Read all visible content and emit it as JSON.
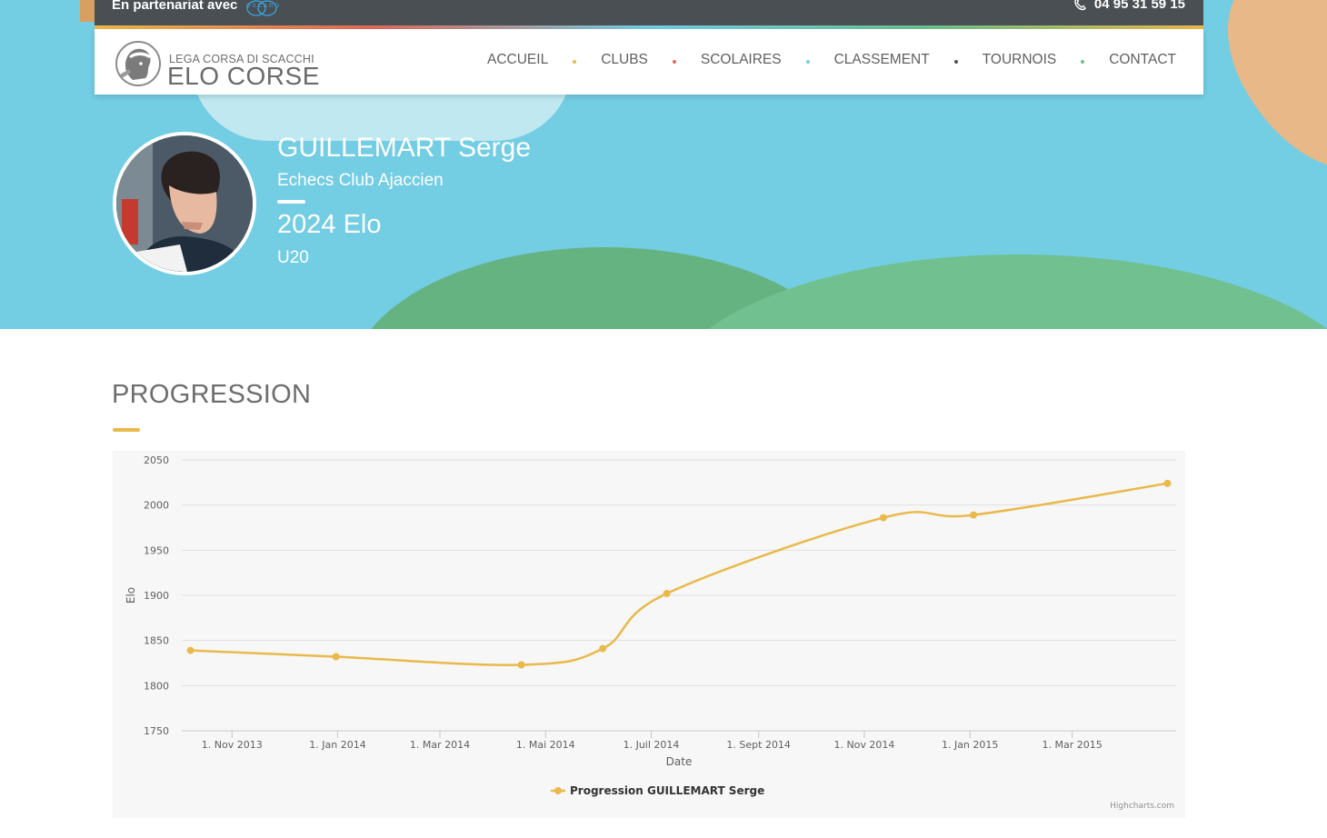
{
  "topbar": {
    "partner_text": "En partenariat avec",
    "partner_logo": "OSCARO",
    "phone": "04 95 31 59 15",
    "phone_icon": "phone-icon"
  },
  "logo": {
    "subtitle": "LEGA CORSA DI SCACCHI",
    "title": "ELO CORSE",
    "emblem_icon": "corsican-head-emblem"
  },
  "nav": {
    "items": [
      {
        "label": "ACCUEIL",
        "dot_color": "#e9b94b"
      },
      {
        "label": "CLUBS",
        "dot_color": "#e06a5a"
      },
      {
        "label": "SCOLAIRES",
        "dot_color": "#72cde3"
      },
      {
        "label": "CLASSEMENT",
        "dot_color": "#555555"
      },
      {
        "label": "TOURNOIS",
        "dot_color": "#6cc08c"
      },
      {
        "label": "CONTACT"
      }
    ]
  },
  "profile": {
    "name": "GUILLEMART Serge",
    "club": "Echecs Club Ajaccien",
    "elo": "2024 Elo",
    "category": "U20",
    "avatar_icon": "player-photo"
  },
  "section": {
    "title": "PROGRESSION"
  },
  "colors": {
    "accent": "#e9b94b",
    "hero_bg": "#73cde3",
    "topbar_bg": "#4a4f53"
  },
  "chart_data": {
    "type": "line",
    "title": "",
    "xlabel": "Date",
    "ylabel": "Elo",
    "ylim": [
      1750,
      2050
    ],
    "yticks": [
      1750,
      1800,
      1850,
      1900,
      1950,
      2000,
      2050
    ],
    "x_tick_labels": [
      "1. Nov 2013",
      "1. Jan 2014",
      "1. Mar 2014",
      "1. Mai 2014",
      "1. Juil 2014",
      "1. Sept 2014",
      "1. Nov 2014",
      "1. Jan 2015",
      "1. Mar 2015"
    ],
    "x_tick_dates": [
      "2013-11-01",
      "2014-01-01",
      "2014-03-01",
      "2014-05-01",
      "2014-07-01",
      "2014-09-01",
      "2014-11-01",
      "2015-01-01",
      "2015-03-01"
    ],
    "xlim": [
      "2013-10-03",
      "2015-04-30"
    ],
    "grid": true,
    "legend": "bottom-center",
    "series": [
      {
        "name": "Progression GUILLEMART Serge",
        "color": "#e9b94b",
        "points": [
          {
            "x": "2013-10-08",
            "y": 1839
          },
          {
            "x": "2013-12-31",
            "y": 1832
          },
          {
            "x": "2014-04-17",
            "y": 1823
          },
          {
            "x": "2014-06-03",
            "y": 1841
          },
          {
            "x": "2014-07-10",
            "y": 1902
          },
          {
            "x": "2014-11-12",
            "y": 1986
          },
          {
            "x": "2015-01-03",
            "y": 1989
          },
          {
            "x": "2015-04-25",
            "y": 2024
          }
        ]
      }
    ],
    "credit": "Highcharts.com"
  }
}
